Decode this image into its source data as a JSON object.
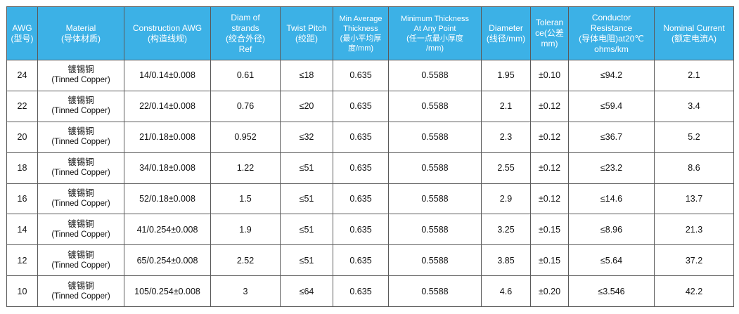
{
  "table": {
    "headers": [
      {
        "lines": [
          "AWG",
          "(型号)"
        ]
      },
      {
        "lines": [
          "Material",
          "(导体材质)"
        ]
      },
      {
        "lines": [
          "Construction AWG",
          "(构造线规)"
        ]
      },
      {
        "lines": [
          "Diam of",
          "strands",
          "(绞合外径)",
          "Ref"
        ]
      },
      {
        "lines": [
          "Twist Pitch",
          "(绞距)"
        ]
      },
      {
        "lines": [
          "Min Average",
          "Thickness",
          "(最小平均厚",
          "度/mm)"
        ]
      },
      {
        "lines": [
          "Minimum Thickness",
          "At Any Point",
          "(任一点最小厚度",
          "/mm)"
        ]
      },
      {
        "lines": [
          "Diameter",
          "(线径/mm)"
        ]
      },
      {
        "lines": [
          "Toleran",
          "ce(公差",
          "mm)"
        ]
      },
      {
        "lines": [
          "Conductor",
          "Resistance",
          "(导体电阻)at20℃",
          "ohms/km"
        ]
      },
      {
        "lines": [
          "Nominal Current",
          "(额定电流A)"
        ]
      }
    ],
    "rows": [
      {
        "awg": "24",
        "material_cn": "镀锡铜",
        "material_en": "(Tinned Copper)",
        "construction": "14/0.14±0.008",
        "diam_strands": "0.61",
        "twist_pitch": "≤18",
        "min_avg_thickness": "0.635",
        "min_thickness_point": "0.5588",
        "diameter": "1.95",
        "tolerance": "±0.10",
        "resistance": "≤94.2",
        "current": "2.1"
      },
      {
        "awg": "22",
        "material_cn": "镀锡铜",
        "material_en": "(Tinned Copper)",
        "construction": "22/0.14±0.008",
        "diam_strands": "0.76",
        "twist_pitch": "≤20",
        "min_avg_thickness": "0.635",
        "min_thickness_point": "0.5588",
        "diameter": "2.1",
        "tolerance": "±0.12",
        "resistance": "≤59.4",
        "current": "3.4"
      },
      {
        "awg": "20",
        "material_cn": "镀锡铜",
        "material_en": "(Tinned Copper)",
        "construction": "21/0.18±0.008",
        "diam_strands": "0.952",
        "twist_pitch": "≤32",
        "min_avg_thickness": "0.635",
        "min_thickness_point": "0.5588",
        "diameter": "2.3",
        "tolerance": "±0.12",
        "resistance": "≤36.7",
        "current": "5.2"
      },
      {
        "awg": "18",
        "material_cn": "镀锡铜",
        "material_en": "(Tinned Copper)",
        "construction": "34/0.18±0.008",
        "diam_strands": "1.22",
        "twist_pitch": "≤51",
        "min_avg_thickness": "0.635",
        "min_thickness_point": "0.5588",
        "diameter": "2.55",
        "tolerance": "±0.12",
        "resistance": "≤23.2",
        "current": "8.6"
      },
      {
        "awg": "16",
        "material_cn": "镀锡铜",
        "material_en": "(Tinned Copper)",
        "construction": "52/0.18±0.008",
        "diam_strands": "1.5",
        "twist_pitch": "≤51",
        "min_avg_thickness": "0.635",
        "min_thickness_point": "0.5588",
        "diameter": "2.9",
        "tolerance": "±0.12",
        "resistance": "≤14.6",
        "current": "13.7"
      },
      {
        "awg": "14",
        "material_cn": "镀锡铜",
        "material_en": "(Tinned Copper)",
        "construction": "41/0.254±0.008",
        "diam_strands": "1.9",
        "twist_pitch": "≤51",
        "min_avg_thickness": "0.635",
        "min_thickness_point": "0.5588",
        "diameter": "3.25",
        "tolerance": "±0.15",
        "resistance": "≤8.96",
        "current": "21.3"
      },
      {
        "awg": "12",
        "material_cn": "镀锡铜",
        "material_en": "(Tinned Copper)",
        "construction": "65/0.254±0.008",
        "diam_strands": "2.52",
        "twist_pitch": "≤51",
        "min_avg_thickness": "0.635",
        "min_thickness_point": "0.5588",
        "diameter": "3.85",
        "tolerance": "±0.15",
        "resistance": "≤5.64",
        "current": "37.2"
      },
      {
        "awg": "10",
        "material_cn": "镀锡铜",
        "material_en": "(Tinned Copper)",
        "construction": "105/0.254±0.008",
        "diam_strands": "3",
        "twist_pitch": "≤64",
        "min_avg_thickness": "0.635",
        "min_thickness_point": "0.5588",
        "diameter": "4.6",
        "tolerance": "±0.20",
        "resistance": "≤3.546",
        "current": "42.2"
      }
    ]
  },
  "colors": {
    "header_bg": "#3cb1e6",
    "header_text": "#ffffff",
    "grid": "#5a5a5a"
  }
}
